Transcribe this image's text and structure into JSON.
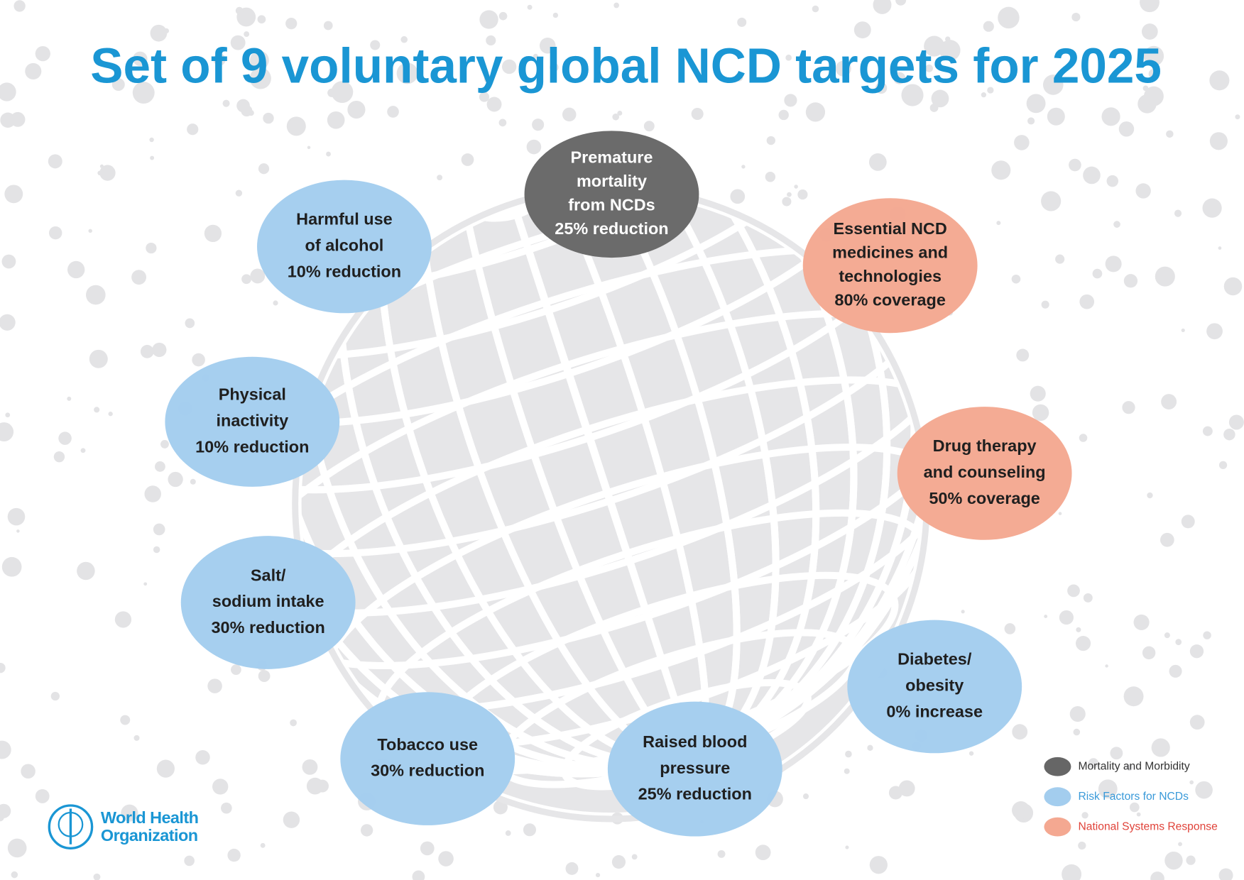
{
  "title": "Set of 9 voluntary global NCD targets for 2025",
  "nodes": [
    {
      "lines": [
        "Premature",
        "mortality",
        "from NCDs",
        "25% reduction"
      ],
      "color": "#666666",
      "text_color": "#ffffff"
    },
    {
      "lines": [
        "Essential NCD",
        "medicines and",
        "technologies",
        "80% coverage"
      ],
      "color": "#f4a891",
      "text_color": "#1f1f1f"
    },
    {
      "lines": [
        "Drug therapy",
        "and counseling",
        "50% coverage"
      ],
      "color": "#f4a891",
      "text_color": "#1f1f1f"
    },
    {
      "lines": [
        "Diabetes/",
        "obesity",
        "0% increase"
      ],
      "color": "#a3cdee",
      "text_color": "#1f1f1f"
    },
    {
      "lines": [
        "Raised blood",
        "pressure",
        "25% reduction"
      ],
      "color": "#a3cdee",
      "text_color": "#1f1f1f"
    },
    {
      "lines": [
        "Tobacco use",
        "30% reduction"
      ],
      "color": "#a3cdee",
      "text_color": "#1f1f1f"
    },
    {
      "lines": [
        "Salt/",
        "sodium intake",
        "30% reduction"
      ],
      "color": "#a3cdee",
      "text_color": "#1f1f1f"
    },
    {
      "lines": [
        "Physical",
        "inactivity",
        "10% reduction"
      ],
      "color": "#a3cdee",
      "text_color": "#1f1f1f"
    },
    {
      "lines": [
        "Harmful use",
        "of alcohol",
        "10% reduction"
      ],
      "color": "#a3cdee",
      "text_color": "#1f1f1f"
    }
  ],
  "legend": [
    {
      "label": "Mortality and Morbidity",
      "color": "#666666",
      "text_color": "#333333"
    },
    {
      "label": "Risk Factors for NCDs",
      "color": "#a3cdee",
      "text_color": "#3a9ad9"
    },
    {
      "label": "National Systems Response",
      "color": "#f4a891",
      "text_color": "#e0433a"
    }
  ],
  "logo": {
    "lines": [
      "World Health",
      "Organization"
    ]
  }
}
